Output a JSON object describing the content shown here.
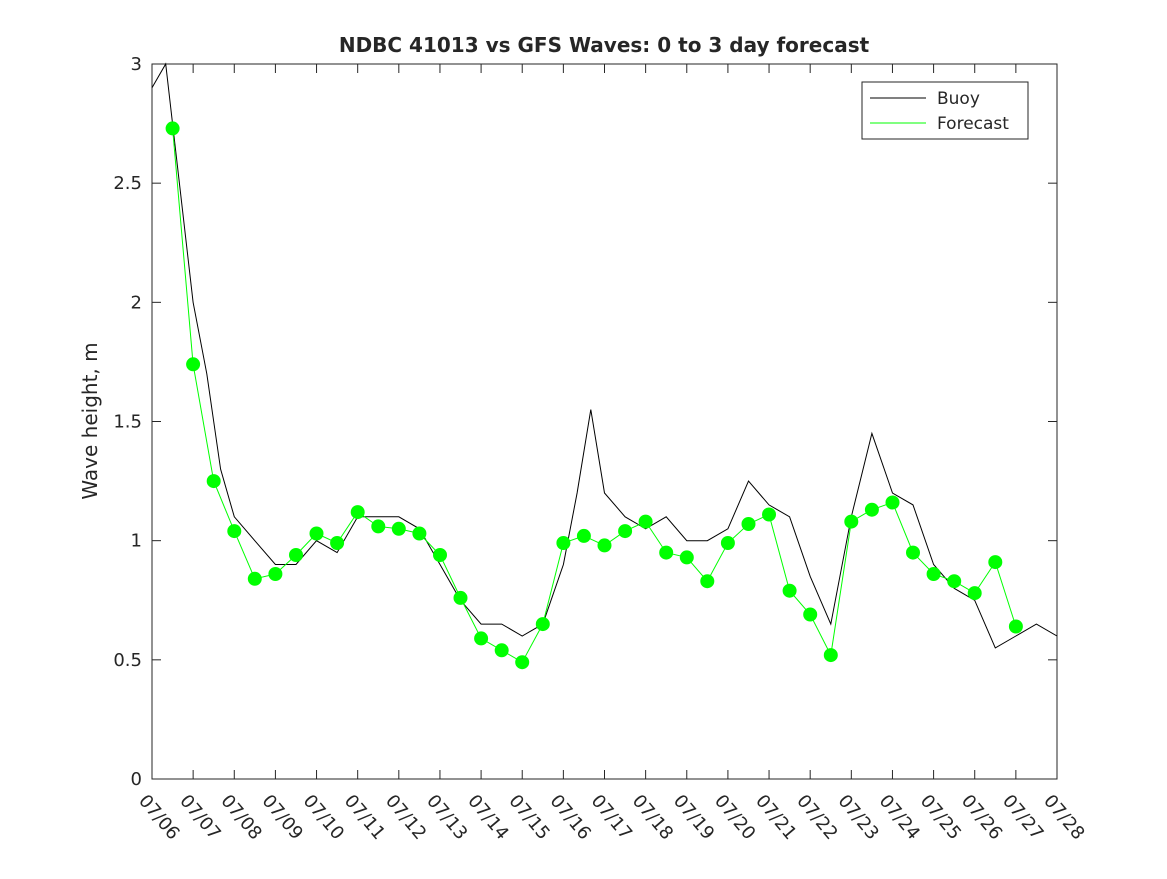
{
  "chart_data": {
    "type": "line",
    "title": "NDBC 41013 vs GFS Waves: 0 to 3 day forecast",
    "xlabel": "",
    "ylabel": "Wave height, m",
    "xlim": [
      "07/06",
      "07/28"
    ],
    "ylim": [
      0,
      3
    ],
    "x_ticks": [
      "07/06",
      "07/07",
      "07/08",
      "07/09",
      "07/10",
      "07/11",
      "07/12",
      "07/13",
      "07/14",
      "07/15",
      "07/16",
      "07/17",
      "07/18",
      "07/19",
      "07/20",
      "07/21",
      "07/22",
      "07/23",
      "07/24",
      "07/25",
      "07/26",
      "07/27",
      "07/28"
    ],
    "y_ticks": [
      0,
      0.5,
      1,
      1.5,
      2,
      2.5,
      3
    ],
    "y_tick_labels": [
      "0",
      "0.5",
      "1",
      "1.5",
      "2",
      "2.5",
      "3"
    ],
    "grid": false,
    "legend": {
      "position": "top-right",
      "entries": [
        "Buoy",
        "Forecast"
      ]
    },
    "colors": {
      "buoy": "#000000",
      "forecast": "#00ff00"
    },
    "series": [
      {
        "name": "Buoy",
        "x": [
          "07/06",
          "07/06 08:00",
          "07/06 16:00",
          "07/07",
          "07/07 08:00",
          "07/07 16:00",
          "07/08",
          "07/08 12:00",
          "07/09",
          "07/09 12:00",
          "07/10",
          "07/10 12:00",
          "07/11",
          "07/11 12:00",
          "07/12",
          "07/12 12:00",
          "07/13",
          "07/13 12:00",
          "07/14",
          "07/14 12:00",
          "07/15",
          "07/15 12:00",
          "07/16",
          "07/16 08:00",
          "07/16 16:00",
          "07/17",
          "07/17 12:00",
          "07/18",
          "07/18 12:00",
          "07/19",
          "07/19 12:00",
          "07/20",
          "07/20 12:00",
          "07/21",
          "07/21 12:00",
          "07/22",
          "07/22 12:00",
          "07/23",
          "07/23 12:00",
          "07/24",
          "07/24 12:00",
          "07/25",
          "07/25 12:00",
          "07/26",
          "07/26 12:00",
          "07/27",
          "07/27 12:00",
          "07/28"
        ],
        "y": [
          2.9,
          3.0,
          2.5,
          2.0,
          1.7,
          1.3,
          1.1,
          1.0,
          0.9,
          0.9,
          1.0,
          0.95,
          1.1,
          1.1,
          1.1,
          1.05,
          0.9,
          0.75,
          0.65,
          0.65,
          0.6,
          0.65,
          0.9,
          1.2,
          1.55,
          1.2,
          1.1,
          1.05,
          1.1,
          1.0,
          1.0,
          1.05,
          1.25,
          1.15,
          1.1,
          0.85,
          0.65,
          1.1,
          1.45,
          1.2,
          1.15,
          0.9,
          0.8,
          0.75,
          0.55,
          0.6,
          0.65,
          0.6
        ]
      },
      {
        "name": "Forecast",
        "x": [
          "07/06 12:00",
          "07/07",
          "07/07 12:00",
          "07/08",
          "07/08 12:00",
          "07/09",
          "07/09 12:00",
          "07/10",
          "07/10 12:00",
          "07/11",
          "07/11 12:00",
          "07/12",
          "07/12 12:00",
          "07/13",
          "07/13 12:00",
          "07/14",
          "07/14 12:00",
          "07/15",
          "07/15 12:00",
          "07/16",
          "07/16 12:00",
          "07/17",
          "07/17 12:00",
          "07/18",
          "07/18 12:00",
          "07/19",
          "07/19 12:00",
          "07/20",
          "07/20 12:00",
          "07/21",
          "07/21 12:00",
          "07/22",
          "07/22 12:00",
          "07/23",
          "07/23 12:00",
          "07/24",
          "07/24 12:00",
          "07/25",
          "07/25 12:00",
          "07/26",
          "07/26 12:00",
          "07/27"
        ],
        "y": [
          2.73,
          1.74,
          1.25,
          1.04,
          0.84,
          0.86,
          0.94,
          1.03,
          0.99,
          1.12,
          1.06,
          1.05,
          1.03,
          0.94,
          0.76,
          0.59,
          0.54,
          0.49,
          0.65,
          0.99,
          1.02,
          0.98,
          1.04,
          1.08,
          0.95,
          0.93,
          0.83,
          0.99,
          1.07,
          1.11,
          0.79,
          0.69,
          0.52,
          1.08,
          1.13,
          1.16,
          0.95,
          0.86,
          0.83,
          0.78,
          0.91,
          0.64
        ]
      }
    ],
    "annotations": []
  }
}
